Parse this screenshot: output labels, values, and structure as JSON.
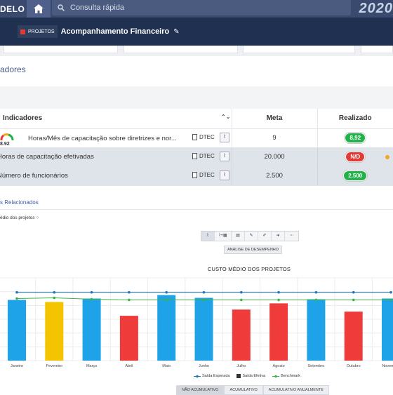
{
  "header": {
    "brand": "DELO",
    "search_placeholder": "Consulta rápida",
    "year": "2020"
  },
  "project": {
    "tag": "PROJETOS",
    "title": "Acompanhamento Financeiro"
  },
  "section_title": "adores",
  "table": {
    "columns": [
      "Indicadores",
      "Meta",
      "Realizado"
    ],
    "rows": [
      {
        "name": "Horas/Mês de capacitação sobre diretrizes e nor...",
        "gauge_value": "8.92",
        "owner": "DTEC",
        "meta": "9",
        "realizado": "8,92",
        "status": "green"
      },
      {
        "name": "Horas de capacitação efetivadas",
        "owner": "DTEC",
        "meta": "20.000",
        "realizado": "N/D",
        "status": "red"
      },
      {
        "name": "Número de funcionários",
        "owner": "DTEC",
        "meta": "2.500",
        "realizado": "2.500",
        "status": "green"
      }
    ]
  },
  "links": {
    "related": "s Relacionados",
    "dropdown": "édio dos projetos"
  },
  "toolbar": {
    "analysis": "ANÁLISE DE DESEMPENHO"
  },
  "chart_data": {
    "type": "bar",
    "title": "CUSTO MÉDIO DOS PROJETOS",
    "categories": [
      "Janeiro",
      "Fevereiro",
      "Março",
      "Abril",
      "Maio",
      "Junho",
      "Julho",
      "Agosto",
      "Setembro",
      "Outubro",
      "Novembro"
    ],
    "values": [
      88,
      85,
      90,
      65,
      95,
      91,
      74,
      83,
      89,
      71,
      90
    ],
    "bar_colors": [
      "#1fa3e8",
      "#f5c400",
      "#1fa3e8",
      "#f03b3b",
      "#1fa3e8",
      "#1fa3e8",
      "#f03b3b",
      "#f03b3b",
      "#1fa3e8",
      "#f03b3b",
      "#1fa3e8"
    ],
    "series_lines": [
      {
        "name": "Saída Esperada",
        "color": "#1f77b4",
        "values": [
          99,
          99,
          99,
          99,
          99,
          99,
          99,
          99,
          99,
          99,
          99
        ]
      },
      {
        "name": "Benchmark",
        "color": "#3cb44b",
        "values": [
          90,
          91,
          89,
          88,
          88,
          88,
          88,
          88,
          88,
          88,
          88
        ]
      }
    ],
    "legend": [
      "Saída Esperada",
      "Saída Efetiva",
      "Benchmark"
    ],
    "ylim": [
      0,
      120
    ]
  },
  "bottom_tabs": [
    "NÃO ACUMULATIVO",
    "ACUMULATIVO",
    "ACUMULATIVO ANUALMENTE"
  ]
}
